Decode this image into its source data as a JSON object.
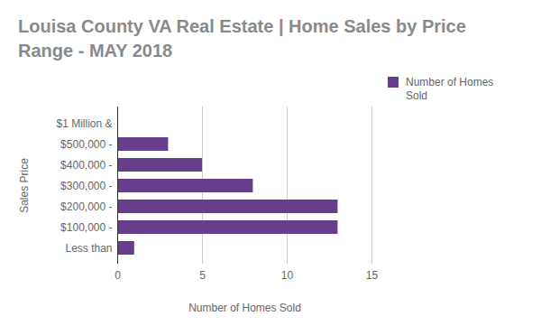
{
  "chart_data": {
    "type": "bar",
    "orientation": "horizontal",
    "title": "Louisa County VA Real Estate | Home Sales by Price Range - MAY 2018",
    "x_label": "Number of Homes Sold",
    "y_label": "Sales Price",
    "categories": [
      "$1 Million &",
      "$500,000 -",
      "$400,000 -",
      "$300,000 -",
      "$200,000 -",
      "$100,000 -",
      "Less than"
    ],
    "series": [
      {
        "name": "Number of Homes Sold",
        "color": "#673e8c",
        "values": [
          0,
          3,
          5,
          8,
          13,
          13,
          1
        ]
      }
    ],
    "xlim": [
      0,
      15
    ],
    "xticks": [
      0,
      5,
      10,
      15
    ],
    "grid": true,
    "legend": "top-right"
  }
}
